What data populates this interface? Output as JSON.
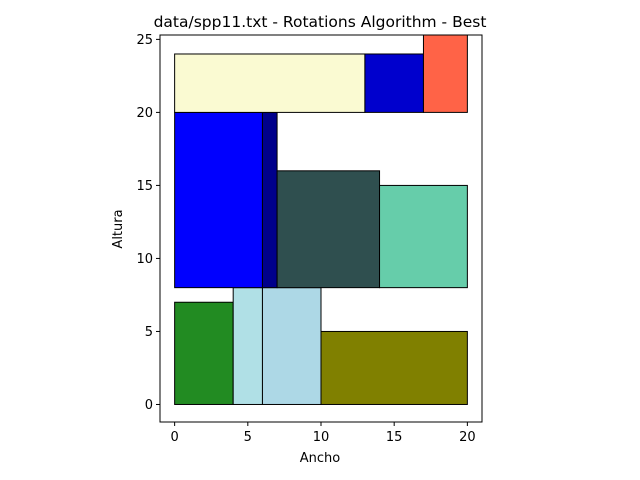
{
  "chart_data": {
    "type": "rectangle-packing",
    "title": "data/spp11.txt - Rotations Algorithm - Best",
    "xlabel": "Ancho",
    "ylabel": "Altura",
    "xlim": [
      -1,
      21
    ],
    "ylim": [
      -1.2,
      25.3
    ],
    "x_ticks": [
      0,
      5,
      10,
      15,
      20
    ],
    "y_ticks": [
      0,
      5,
      10,
      15,
      20,
      25
    ],
    "grid": false,
    "rectangles": [
      {
        "x": 0,
        "y": 0,
        "w": 4,
        "h": 7,
        "color": "#228b22"
      },
      {
        "x": 4,
        "y": 0,
        "w": 2,
        "h": 8,
        "color": "#b0e0e6"
      },
      {
        "x": 6,
        "y": 0,
        "w": 4,
        "h": 8,
        "color": "#add8e6"
      },
      {
        "x": 10,
        "y": 0,
        "w": 10,
        "h": 5,
        "color": "#808000"
      },
      {
        "x": 0,
        "y": 8,
        "w": 6,
        "h": 12,
        "color": "#0000ff"
      },
      {
        "x": 6,
        "y": 8,
        "w": 1,
        "h": 12,
        "color": "#00008b"
      },
      {
        "x": 7,
        "y": 8,
        "w": 7,
        "h": 8,
        "color": "#2f4f4f"
      },
      {
        "x": 14,
        "y": 8,
        "w": 6,
        "h": 7,
        "color": "#66cdaa"
      },
      {
        "x": 0,
        "y": 20,
        "w": 13,
        "h": 4,
        "color": "#fafad2"
      },
      {
        "x": 13,
        "y": 20,
        "w": 4,
        "h": 4,
        "color": "#0000cd"
      },
      {
        "x": 17,
        "y": 20,
        "w": 3,
        "h": 6,
        "color": "#ff6347"
      }
    ]
  }
}
